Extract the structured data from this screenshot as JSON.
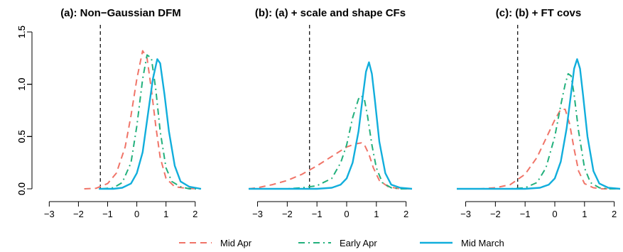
{
  "chart_data": [
    {
      "type": "line",
      "title": "(a): Non−Gaussian DFM",
      "xlim": [
        -3.3,
        2.2
      ],
      "ylim": [
        0,
        1.5
      ],
      "xticks": [
        -3,
        -2,
        -1,
        0,
        1,
        2
      ],
      "xtick_labels": [
        "−3",
        "−2",
        "−1",
        "0",
        "1",
        "2"
      ],
      "yticks": [
        0.0,
        0.5,
        1.0,
        1.5
      ],
      "ytick_labels": [
        "0.0",
        "0.5",
        "1.0",
        "1.5"
      ],
      "vline": -1.25,
      "series": [
        {
          "name": "Mid Apr",
          "x": [
            -1.8,
            -1.4,
            -1.0,
            -0.7,
            -0.4,
            -0.2,
            0.0,
            0.2,
            0.35,
            0.5,
            0.65,
            0.8,
            1.0,
            1.3,
            1.7,
            2.2
          ],
          "y": [
            0.0,
            0.005,
            0.05,
            0.15,
            0.4,
            0.7,
            1.05,
            1.32,
            1.25,
            0.95,
            0.6,
            0.3,
            0.1,
            0.02,
            0.005,
            0.0
          ]
        },
        {
          "name": "Early Apr",
          "x": [
            -1.2,
            -0.8,
            -0.5,
            -0.2,
            0.0,
            0.2,
            0.35,
            0.5,
            0.65,
            0.8,
            1.0,
            1.2,
            1.5,
            1.8,
            2.2
          ],
          "y": [
            0.0,
            0.01,
            0.06,
            0.25,
            0.6,
            1.05,
            1.28,
            1.25,
            0.95,
            0.55,
            0.2,
            0.07,
            0.02,
            0.0,
            0.0
          ]
        },
        {
          "name": "Mid March",
          "x": [
            -1.3,
            -0.8,
            -0.5,
            -0.2,
            0.0,
            0.2,
            0.4,
            0.55,
            0.7,
            0.8,
            0.95,
            1.1,
            1.3,
            1.5,
            1.8,
            2.2
          ],
          "y": [
            0.0,
            0.0,
            0.01,
            0.05,
            0.15,
            0.35,
            0.75,
            1.05,
            1.24,
            1.2,
            0.9,
            0.55,
            0.22,
            0.07,
            0.02,
            0.0
          ]
        }
      ]
    },
    {
      "type": "line",
      "title": "(b): (a) + scale and shape CFs",
      "xlim": [
        -3.3,
        2.2
      ],
      "ylim": [
        0,
        1.5
      ],
      "xticks": [
        -3,
        -2,
        -1,
        0,
        1,
        2
      ],
      "xtick_labels": [
        "−3",
        "−2",
        "−1",
        "0",
        "1",
        "2"
      ],
      "yticks": [
        0.0,
        0.5,
        1.0,
        1.5
      ],
      "ytick_labels": [
        "0.0",
        "0.5",
        "1.0",
        "1.5"
      ],
      "vline": -1.25,
      "series": [
        {
          "name": "Mid Apr",
          "x": [
            -3.3,
            -3.0,
            -2.5,
            -2.0,
            -1.5,
            -1.0,
            -0.5,
            0.0,
            0.3,
            0.5,
            0.6,
            0.75,
            0.9,
            1.1,
            1.4,
            1.8,
            2.2
          ],
          "y": [
            0.0,
            0.01,
            0.04,
            0.08,
            0.14,
            0.22,
            0.31,
            0.4,
            0.43,
            0.44,
            0.42,
            0.33,
            0.2,
            0.08,
            0.02,
            0.0,
            0.0
          ]
        },
        {
          "name": "Early Apr",
          "x": [
            -3.3,
            -2.0,
            -1.5,
            -1.0,
            -0.5,
            -0.2,
            0.0,
            0.2,
            0.4,
            0.5,
            0.6,
            0.7,
            0.85,
            1.0,
            1.2,
            1.5,
            1.8,
            2.2
          ],
          "y": [
            0.0,
            0.0,
            0.01,
            0.03,
            0.1,
            0.25,
            0.42,
            0.68,
            0.86,
            0.89,
            0.85,
            0.7,
            0.42,
            0.2,
            0.06,
            0.01,
            0.0,
            0.0
          ]
        },
        {
          "name": "Mid March",
          "x": [
            -3.3,
            -1.0,
            -0.5,
            -0.2,
            0.0,
            0.2,
            0.4,
            0.55,
            0.65,
            0.75,
            0.85,
            0.95,
            1.1,
            1.3,
            1.5,
            1.8,
            2.2
          ],
          "y": [
            0.0,
            0.0,
            0.01,
            0.04,
            0.1,
            0.25,
            0.55,
            0.9,
            1.12,
            1.21,
            1.1,
            0.85,
            0.45,
            0.15,
            0.04,
            0.01,
            0.0
          ]
        }
      ]
    },
    {
      "type": "line",
      "title": "(c): (b) + FT covs",
      "xlim": [
        -3.3,
        2.2
      ],
      "ylim": [
        0,
        1.5
      ],
      "xticks": [
        -3,
        -2,
        -1,
        0,
        1,
        2
      ],
      "xtick_labels": [
        "−3",
        "−2",
        "−1",
        "0",
        "1",
        "2"
      ],
      "yticks": [
        0.0,
        0.5,
        1.0,
        1.5
      ],
      "ytick_labels": [
        "0.0",
        "0.5",
        "1.0",
        "1.5"
      ],
      "vline": -1.25,
      "series": [
        {
          "name": "Mid Apr",
          "x": [
            -3.3,
            -2.5,
            -2.0,
            -1.5,
            -1.0,
            -0.6,
            -0.3,
            0.0,
            0.2,
            0.35,
            0.5,
            0.65,
            0.8,
            1.0,
            1.3,
            1.6,
            2.2
          ],
          "y": [
            0.0,
            0.0,
            0.01,
            0.04,
            0.14,
            0.3,
            0.48,
            0.66,
            0.76,
            0.76,
            0.62,
            0.38,
            0.17,
            0.05,
            0.01,
            0.0,
            0.0
          ]
        },
        {
          "name": "Early Apr",
          "x": [
            -3.3,
            -1.5,
            -1.0,
            -0.6,
            -0.3,
            0.0,
            0.2,
            0.35,
            0.45,
            0.55,
            0.65,
            0.8,
            1.0,
            1.2,
            1.5,
            1.8,
            2.2
          ],
          "y": [
            0.0,
            0.0,
            0.01,
            0.06,
            0.2,
            0.5,
            0.8,
            1.0,
            1.1,
            1.08,
            0.9,
            0.55,
            0.2,
            0.06,
            0.01,
            0.0,
            0.0
          ]
        },
        {
          "name": "Mid March",
          "x": [
            -3.3,
            -1.0,
            -0.5,
            -0.2,
            0.0,
            0.2,
            0.4,
            0.55,
            0.65,
            0.75,
            0.85,
            0.95,
            1.1,
            1.3,
            1.5,
            1.8,
            2.2
          ],
          "y": [
            0.0,
            0.0,
            0.01,
            0.04,
            0.1,
            0.26,
            0.58,
            0.92,
            1.15,
            1.24,
            1.15,
            0.9,
            0.5,
            0.17,
            0.05,
            0.01,
            0.0
          ]
        }
      ]
    }
  ],
  "legend": {
    "placement": "bottom",
    "items": [
      {
        "label": "Mid Apr",
        "color": "#F07468",
        "dash": "dashed"
      },
      {
        "label": "Early Apr",
        "color": "#22B07C",
        "dash": "dotdash"
      },
      {
        "label": "Mid March",
        "color": "#11AEDC",
        "dash": "solid"
      }
    ]
  }
}
